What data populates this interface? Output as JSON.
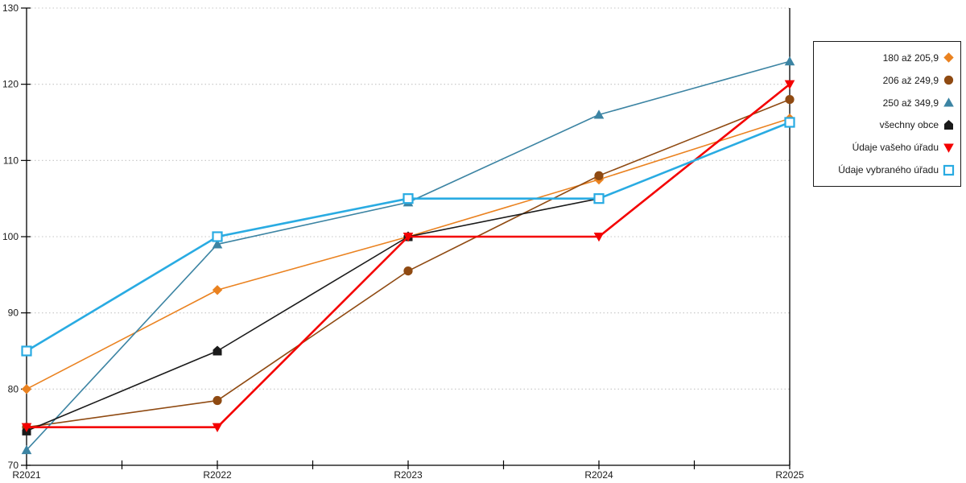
{
  "chart_data": {
    "type": "line",
    "categories": [
      "R2021",
      "R2022",
      "R2023",
      "R2024",
      "R2025"
    ],
    "series": [
      {
        "name": "180 až 205,9",
        "marker": "diamond",
        "color": "#EA8220",
        "line_width": 1.6,
        "values": [
          80,
          93,
          100,
          107.5,
          115.5
        ]
      },
      {
        "name": "206 až 249,9",
        "marker": "circle",
        "color": "#8F4A12",
        "line_width": 1.6,
        "values": [
          75,
          78.5,
          95.5,
          108,
          118
        ]
      },
      {
        "name": "250 až 349,9",
        "marker": "triangle-up",
        "color": "#3C84A3",
        "line_width": 1.6,
        "values": [
          72,
          99,
          104.5,
          116,
          123
        ]
      },
      {
        "name": "všechny obce",
        "marker": "pentagon",
        "color": "#1A1A1A",
        "line_width": 1.6,
        "values": [
          74.5,
          85,
          100,
          105,
          115
        ]
      },
      {
        "name": "Údaje vašeho úřadu",
        "marker": "triangle-down",
        "color": "#F40000",
        "line_width": 2.6,
        "values": [
          75,
          75,
          100,
          100,
          120
        ]
      },
      {
        "name": "Údaje vybraného úřadu",
        "marker": "square-open",
        "color": "#29ABE2",
        "line_width": 2.6,
        "values": [
          85,
          100,
          105,
          105,
          115
        ]
      }
    ],
    "ylim": [
      70,
      130
    ],
    "yticks": [
      70,
      80,
      90,
      100,
      110,
      120,
      130
    ],
    "grid": "horizontal-dotted",
    "legend_position": "right",
    "title": "",
    "xlabel": "",
    "ylabel": ""
  },
  "colors": {
    "axis": "#000000",
    "grid": "#C4C4C4",
    "text": "#1a1a1a",
    "background": "#ffffff"
  }
}
